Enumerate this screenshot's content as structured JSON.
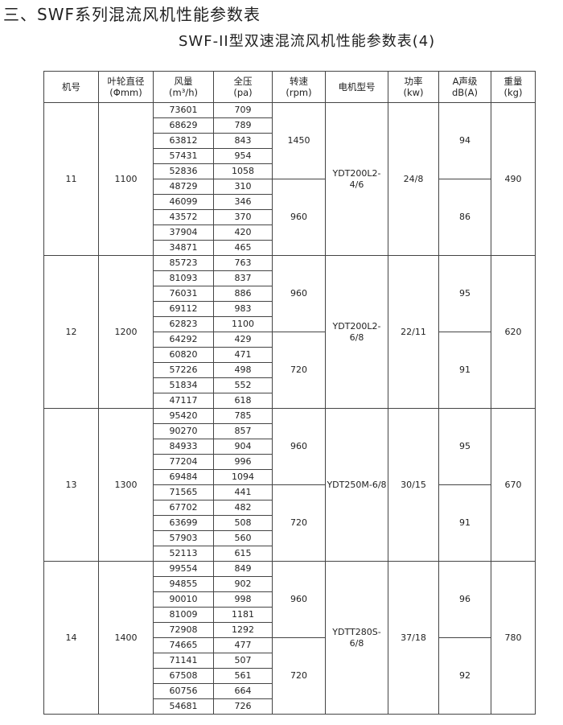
{
  "title": "三、SWF系列混流风机性能参数表",
  "subtitle": "SWF-II型双速混流风机性能参数表(4)",
  "headers": [
    [
      "机号",
      ""
    ],
    [
      "叶轮直径",
      "(Φmm)"
    ],
    [
      "风量",
      "(m³/h)"
    ],
    [
      "全压",
      "(pa)"
    ],
    [
      "转速",
      "(rpm)"
    ],
    [
      "电机型号",
      ""
    ],
    [
      "功率",
      "(kw)"
    ],
    [
      "A声级",
      "dB(A)"
    ],
    [
      "重量",
      "(kg)"
    ]
  ],
  "groups": [
    {
      "no": "11",
      "dia": "1100",
      "motor": "YDT200L2-4/6",
      "power": "24/8",
      "weight": "490",
      "speeds": [
        {
          "rpm": "1450",
          "db": "94",
          "rows": [
            [
              "73601",
              "709"
            ],
            [
              "68629",
              "789"
            ],
            [
              "63812",
              "843"
            ],
            [
              "57431",
              "954"
            ],
            [
              "52836",
              "1058"
            ]
          ]
        },
        {
          "rpm": "960",
          "db": "86",
          "rows": [
            [
              "48729",
              "310"
            ],
            [
              "46099",
              "346"
            ],
            [
              "43572",
              "370"
            ],
            [
              "37904",
              "420"
            ],
            [
              "34871",
              "465"
            ]
          ]
        }
      ]
    },
    {
      "no": "12",
      "dia": "1200",
      "motor": "YDT200L2-6/8",
      "power": "22/11",
      "weight": "620",
      "speeds": [
        {
          "rpm": "960",
          "db": "95",
          "rows": [
            [
              "85723",
              "763"
            ],
            [
              "81093",
              "837"
            ],
            [
              "76031",
              "886"
            ],
            [
              "69112",
              "983"
            ],
            [
              "62823",
              "1100"
            ]
          ]
        },
        {
          "rpm": "720",
          "db": "91",
          "rows": [
            [
              "64292",
              "429"
            ],
            [
              "60820",
              "471"
            ],
            [
              "57226",
              "498"
            ],
            [
              "51834",
              "552"
            ],
            [
              "47117",
              "618"
            ]
          ]
        }
      ]
    },
    {
      "no": "13",
      "dia": "1300",
      "motor": "YDT250M-6/8",
      "power": "30/15",
      "weight": "670",
      "speeds": [
        {
          "rpm": "960",
          "db": "95",
          "rows": [
            [
              "95420",
              "785"
            ],
            [
              "90270",
              "857"
            ],
            [
              "84933",
              "904"
            ],
            [
              "77204",
              "996"
            ],
            [
              "69484",
              "1094"
            ]
          ]
        },
        {
          "rpm": "720",
          "db": "91",
          "rows": [
            [
              "71565",
              "441"
            ],
            [
              "67702",
              "482"
            ],
            [
              "63699",
              "508"
            ],
            [
              "57903",
              "560"
            ],
            [
              "52113",
              "615"
            ]
          ]
        }
      ]
    },
    {
      "no": "14",
      "dia": "1400",
      "motor": "YDTT280S-6/8",
      "power": "37/18",
      "weight": "780",
      "speeds": [
        {
          "rpm": "960",
          "db": "96",
          "rows": [
            [
              "99554",
              "849"
            ],
            [
              "94855",
              "902"
            ],
            [
              "90010",
              "998"
            ],
            [
              "81009",
              "1181"
            ],
            [
              "72908",
              "1292"
            ]
          ]
        },
        {
          "rpm": "720",
          "db": "92",
          "rows": [
            [
              "74665",
              "477"
            ],
            [
              "71141",
              "507"
            ],
            [
              "67508",
              "561"
            ],
            [
              "60756",
              "664"
            ],
            [
              "54681",
              "726"
            ]
          ]
        }
      ]
    }
  ]
}
